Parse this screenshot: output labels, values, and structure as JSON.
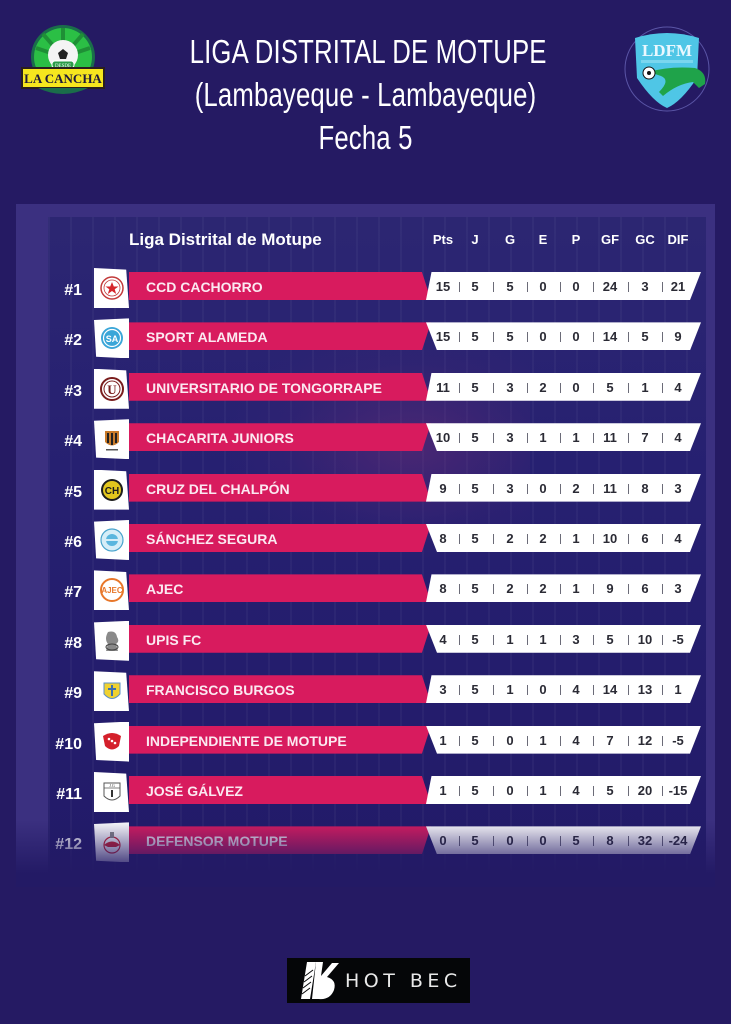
{
  "header": {
    "title_line1": "LIGA DISTRITAL DE MOTUPE",
    "title_line2": "(Lambayeque - Lambayeque)",
    "title_line3": "Fecha  5",
    "left_logo": {
      "top_text": "DESDE",
      "text": "LA CANCHA",
      "icon": "soccer-ball-icon"
    },
    "right_logo": {
      "text": "LDFM",
      "icon": "crocodile-shield-icon"
    }
  },
  "table": {
    "league_label": "Liga Distrital de Motupe",
    "columns": [
      "Pts",
      "J",
      "G",
      "E",
      "P",
      "GF",
      "GC",
      "DIF"
    ],
    "rows": [
      {
        "rank": "#1",
        "team": "CCD CACHORRO",
        "badge": "red-star-crest",
        "stats": [
          "15",
          "5",
          "5",
          "0",
          "0",
          "24",
          "3",
          "21"
        ]
      },
      {
        "rank": "#2",
        "team": "SPORT ALAMEDA",
        "badge": "sa-crest",
        "stats": [
          "15",
          "5",
          "5",
          "0",
          "0",
          "14",
          "5",
          "9"
        ]
      },
      {
        "rank": "#3",
        "team": "UNIVERSITARIO DE TONGORRAPE",
        "badge": "u-crest",
        "stats": [
          "11",
          "5",
          "3",
          "2",
          "0",
          "5",
          "1",
          "4"
        ]
      },
      {
        "rank": "#4",
        "team": "CHACARITA JUNIORS",
        "badge": "chacarita-crest",
        "stats": [
          "10",
          "5",
          "3",
          "1",
          "1",
          "11",
          "7",
          "4"
        ]
      },
      {
        "rank": "#5",
        "team": "CRUZ DEL CHALPÓN",
        "badge": "ch-crest",
        "stats": [
          "9",
          "5",
          "3",
          "0",
          "2",
          "11",
          "8",
          "3"
        ]
      },
      {
        "rank": "#6",
        "team": "SÁNCHEZ SEGURA",
        "badge": "sanchez-crest",
        "stats": [
          "8",
          "5",
          "2",
          "2",
          "1",
          "10",
          "6",
          "4"
        ]
      },
      {
        "rank": "#7",
        "team": "AJEC",
        "badge": "ajec-crest",
        "stats": [
          "8",
          "5",
          "2",
          "2",
          "1",
          "9",
          "6",
          "3"
        ]
      },
      {
        "rank": "#8",
        "team": "UPIS FC",
        "badge": "upis-crest",
        "stats": [
          "4",
          "5",
          "1",
          "1",
          "3",
          "5",
          "10",
          "-5"
        ]
      },
      {
        "rank": "#9",
        "team": "FRANCISCO BURGOS",
        "badge": "burgos-crest",
        "stats": [
          "3",
          "5",
          "1",
          "0",
          "4",
          "14",
          "13",
          "1"
        ]
      },
      {
        "rank": "#10",
        "team": "INDEPENDIENTE DE MOTUPE",
        "badge": "independiente-crest",
        "stats": [
          "1",
          "5",
          "0",
          "1",
          "4",
          "7",
          "12",
          "-5"
        ]
      },
      {
        "rank": "#11",
        "team": "JOSÉ GÁLVEZ",
        "badge": "jg-crest",
        "stats": [
          "1",
          "5",
          "0",
          "1",
          "4",
          "5",
          "20",
          "-15"
        ]
      },
      {
        "rank": "#12",
        "team": "DEFENSOR MOTUPE",
        "badge": "defensor-crest",
        "stats": [
          "0",
          "5",
          "0",
          "0",
          "5",
          "8",
          "32",
          "-24"
        ]
      }
    ]
  },
  "footer": {
    "sponsor": "HOT BEC"
  },
  "colors": {
    "background": "#251a63",
    "team_bar": "#d81b5e",
    "stats_bar": "#ffffff",
    "panel": "#3b3080"
  }
}
